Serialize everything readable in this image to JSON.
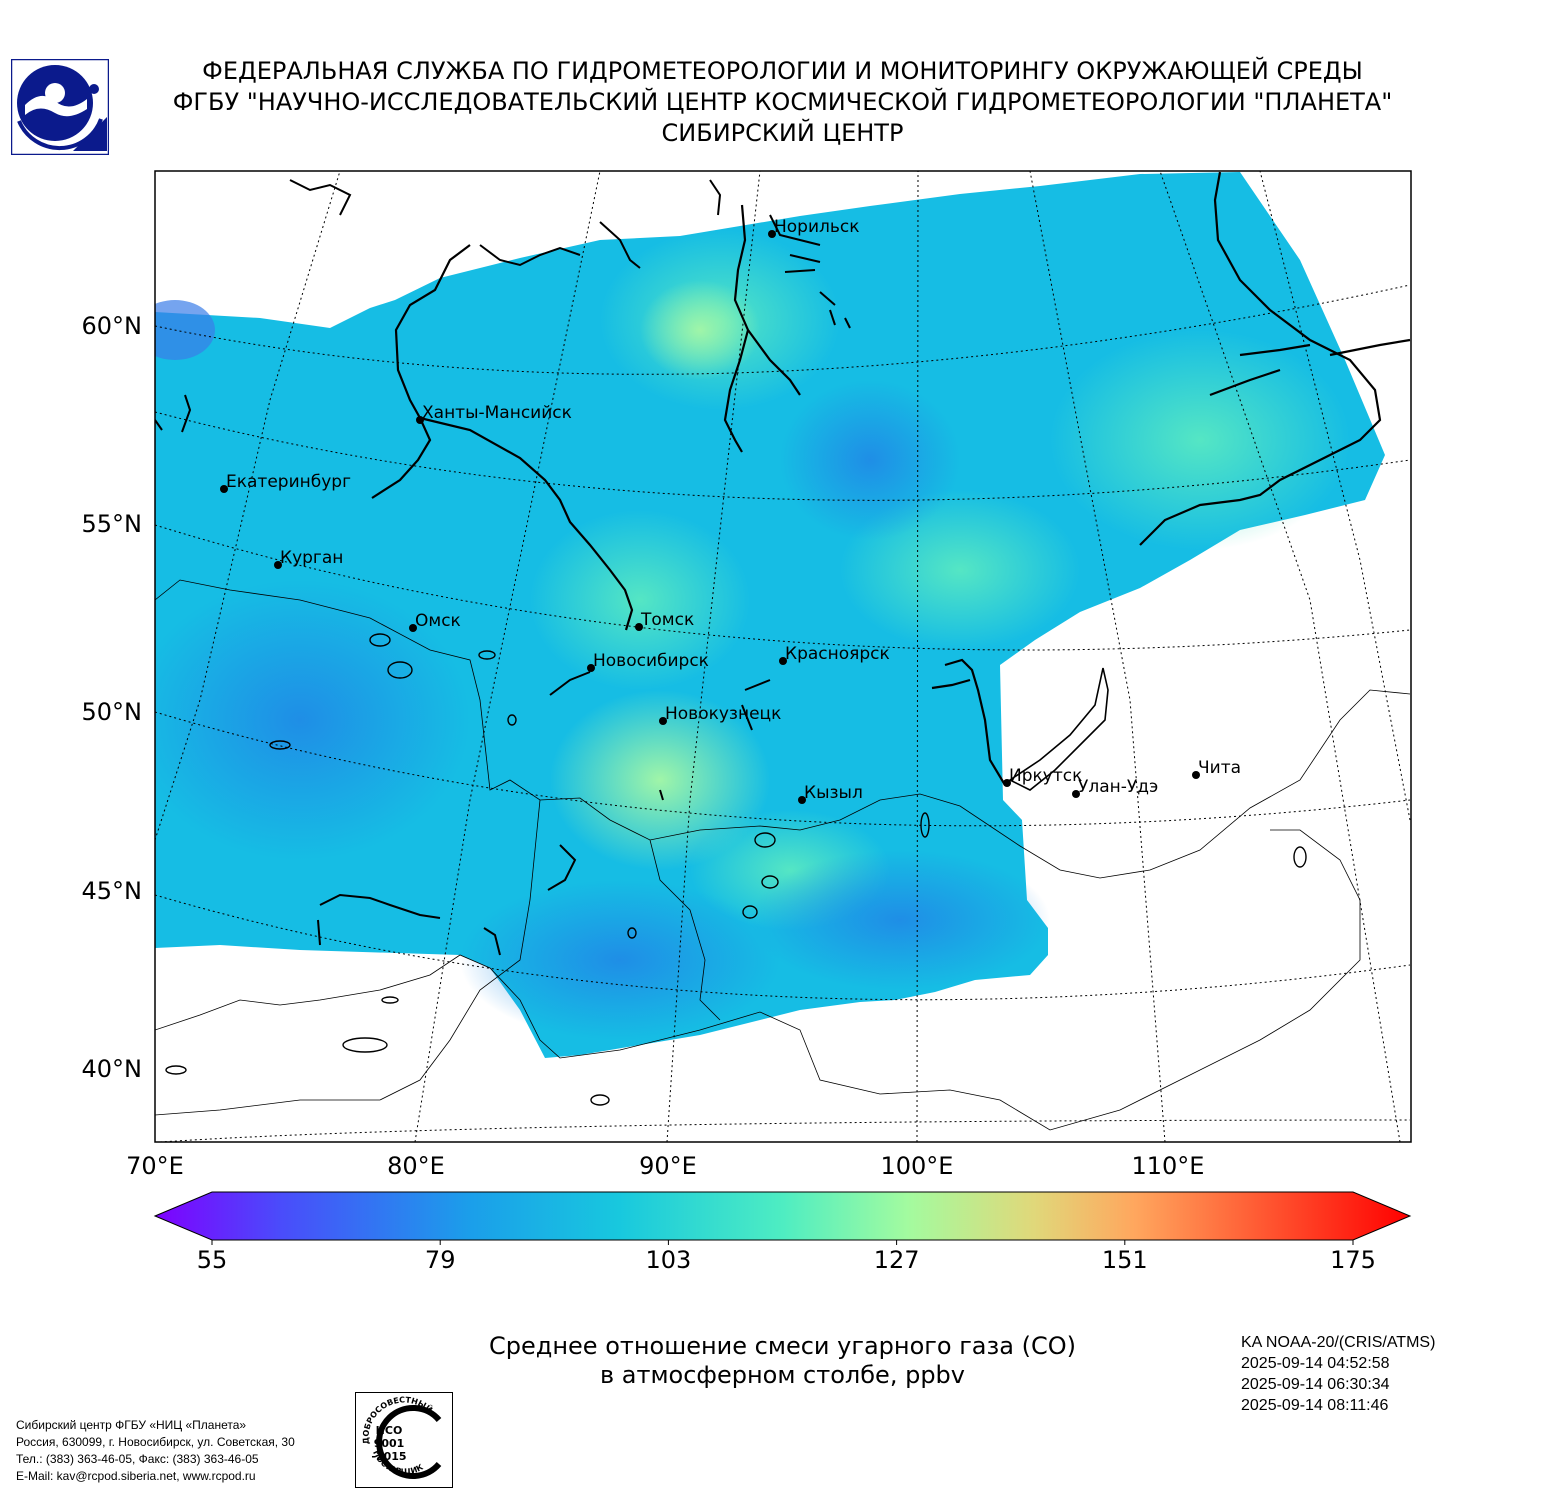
{
  "header": {
    "line1": "ФЕДЕРАЛЬНАЯ СЛУЖБА ПО ГИДРОМЕТЕОРОЛОГИИ И МОНИТОРИНГУ ОКРУЖАЮЩЕЙ СРЕДЫ",
    "line2": "ФГБУ \"НАУЧНО-ИССЛЕДОВАТЕЛЬСКИЙ ЦЕНТР КОСМИЧЕСКОЙ ГИДРОМЕТЕОРОЛОГИИ \"ПЛАНЕТА\"",
    "line3": "СИБИРСКИЙ ЦЕНТР"
  },
  "logo": {
    "icon": "planeta-logo-icon",
    "color": "#0b1a8c"
  },
  "map": {
    "lat_labels": [
      "60°N",
      "55°N",
      "50°N",
      "45°N",
      "40°N"
    ],
    "lon_labels": [
      "70°E",
      "80°E",
      "90°E",
      "100°E",
      "110°E"
    ],
    "cities": [
      {
        "name": "Норильск"
      },
      {
        "name": "Ханты-Мансийск"
      },
      {
        "name": "Екатеринбург"
      },
      {
        "name": "Курган"
      },
      {
        "name": "Омск"
      },
      {
        "name": "Томск"
      },
      {
        "name": "Новосибирск"
      },
      {
        "name": "Красноярск"
      },
      {
        "name": "Новокузнецк"
      },
      {
        "name": "Иркутск"
      },
      {
        "name": "Улан-Удэ"
      },
      {
        "name": "Чита"
      },
      {
        "name": "Кызыл"
      }
    ],
    "field_colors": {
      "low": "#1aa8ea",
      "mid": "#16c0e0",
      "high": "#3fe2c8",
      "peak": "#8ff2b0",
      "edge": "#3a7ee8"
    }
  },
  "colorbar": {
    "ticks": [
      "55",
      "79",
      "103",
      "127",
      "151",
      "175"
    ],
    "min": 55,
    "max": 175,
    "colors": [
      "#7f00ff",
      "#4a4cfb",
      "#1b9eea",
      "#18c8de",
      "#4eedc2",
      "#a3fb9f",
      "#e0d87a",
      "#ffa75e",
      "#ff5a33",
      "#ff0000"
    ]
  },
  "caption": {
    "line1": "Среднее отношение смеси угарного газа (CO)",
    "line2": "в атмосферном столбе, ppbv"
  },
  "satellite": {
    "name": "KA NOAA-20/(CRIS/ATMS)",
    "times": [
      "2025-09-14 04:52:58",
      "2025-09-14 06:30:34",
      "2025-09-14 08:11:46"
    ]
  },
  "contacts": {
    "line1": "Сибирский центр ФГБУ «НИЦ «Планета»",
    "line2": "Россия, 630099, г. Новосибирск, ул. Советская, 30",
    "line3": "Тел.: (383) 363-46-05, Факс: (383) 363-46-05",
    "line4": "E-Mail: kav@rcpod.siberia.net, www.rcpod.ru"
  },
  "iso_badge": {
    "icon": "iso-certificate-icon",
    "top_text": "ДОБРОСОВЕСТНЫЙ",
    "center1": "ИСО",
    "center2": "9001",
    "center3": "-2015",
    "bottom_text": "ПОСТАВЩИК"
  }
}
